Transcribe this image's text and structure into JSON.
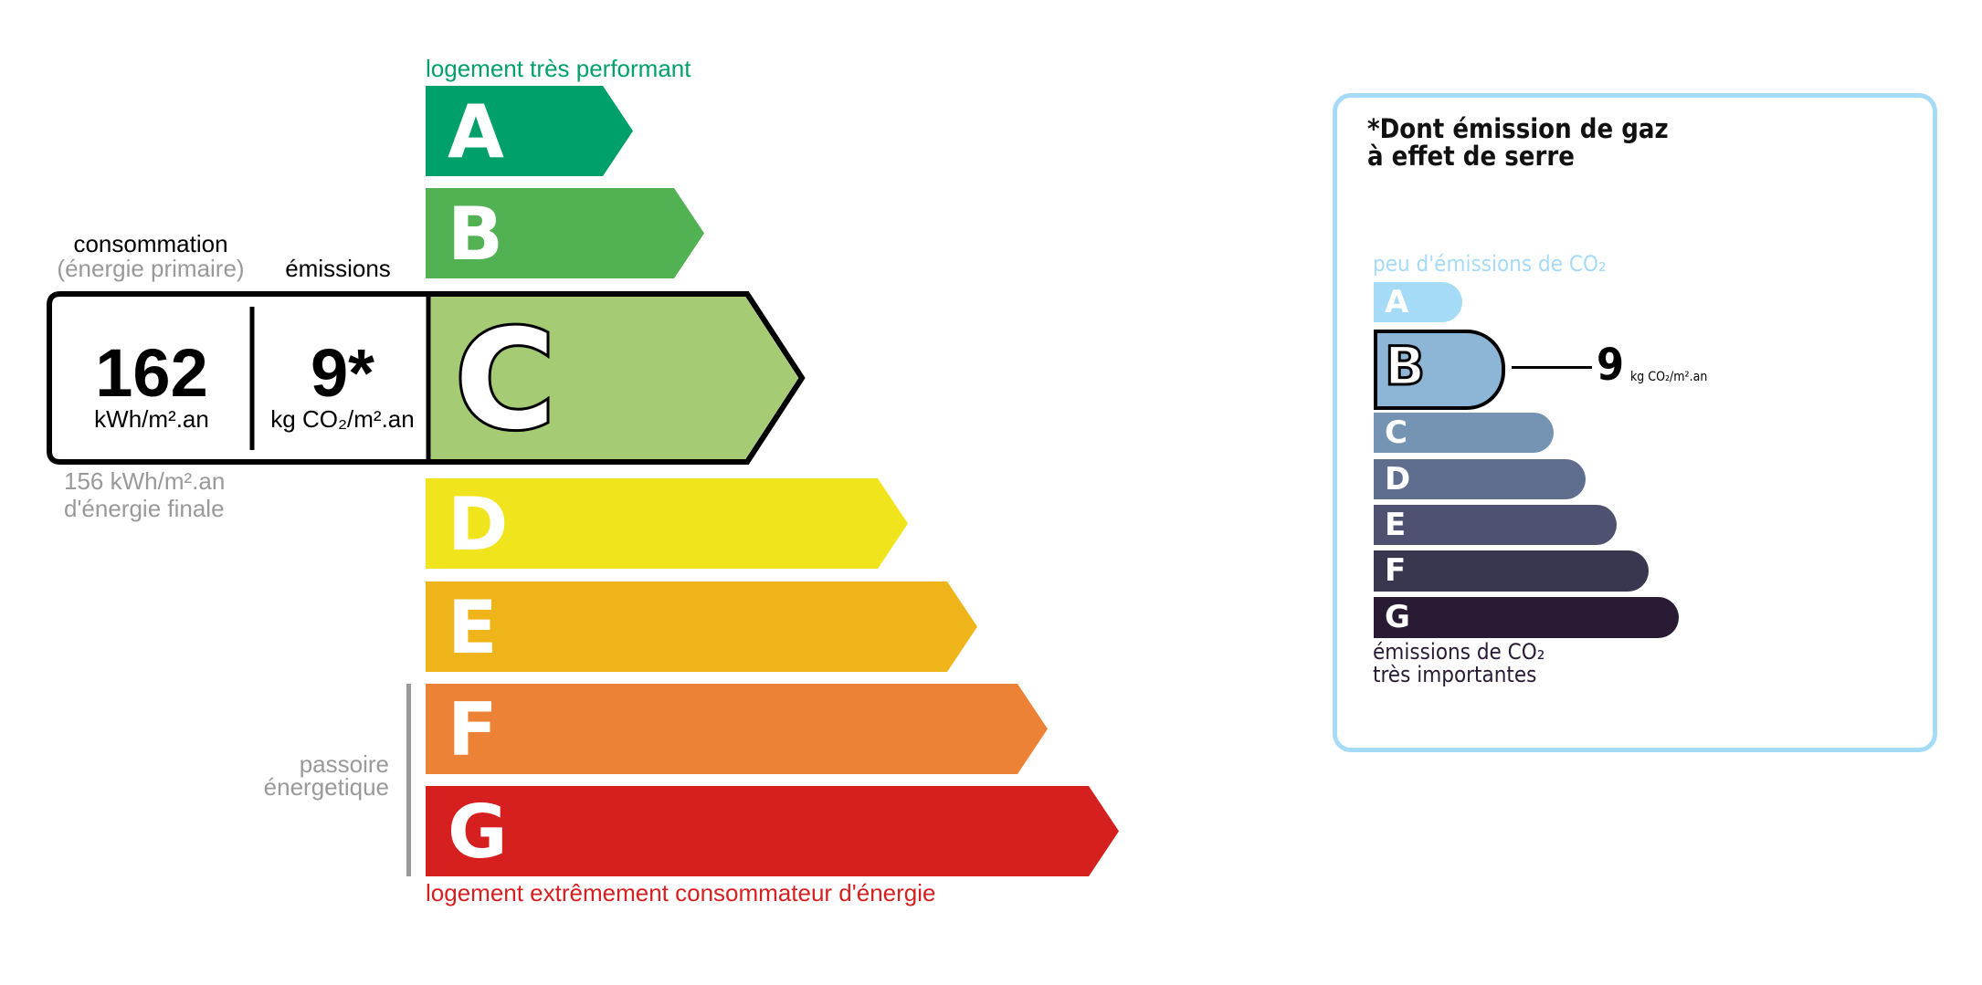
{
  "energy": {
    "top_label": "logement très performant",
    "bottom_label": "logement extrêmement consommateur d'énergie",
    "passoire_label": [
      "passoire",
      "énergetique"
    ],
    "classes": [
      {
        "letter": "A",
        "color": "#00a06b"
      },
      {
        "letter": "B",
        "color": "#52b153"
      },
      {
        "letter": "C",
        "color": "#a5cc74"
      },
      {
        "letter": "D",
        "color": "#f0e51c"
      },
      {
        "letter": "E",
        "color": "#efb419"
      },
      {
        "letter": "F",
        "color": "#eb8235"
      },
      {
        "letter": "G",
        "color": "#d61f1f"
      }
    ],
    "current_class": "C",
    "consumption_header": "consommation",
    "consumption_subheader": "(énergie primaire)",
    "emissions_header": "émissions",
    "consumption_value": "162",
    "consumption_unit": "kWh/m².an",
    "emissions_value": "9*",
    "emissions_unit": "kg CO₂/m².an",
    "final_energy": "156 kWh/m².an",
    "final_energy_label": "d'énergie finale"
  },
  "ges": {
    "title_line1": "*Dont émission de gaz",
    "title_line2": "à effet de serre",
    "top_label": "peu d'émissions de CO₂",
    "bottom_label_line1": "émissions de CO₂",
    "bottom_label_line2": "très importantes",
    "border_color": "#a5dbf7",
    "classes": [
      {
        "letter": "A",
        "color": "#a5dbf7"
      },
      {
        "letter": "B",
        "color": "#8db5d5"
      },
      {
        "letter": "C",
        "color": "#7593b3"
      },
      {
        "letter": "D",
        "color": "#5f6d8f"
      },
      {
        "letter": "E",
        "color": "#4e5270"
      },
      {
        "letter": "F",
        "color": "#39364f"
      },
      {
        "letter": "G",
        "color": "#2a1b35"
      }
    ],
    "current_class": "B",
    "value": "9",
    "unit": "kg CO₂/m².an"
  }
}
